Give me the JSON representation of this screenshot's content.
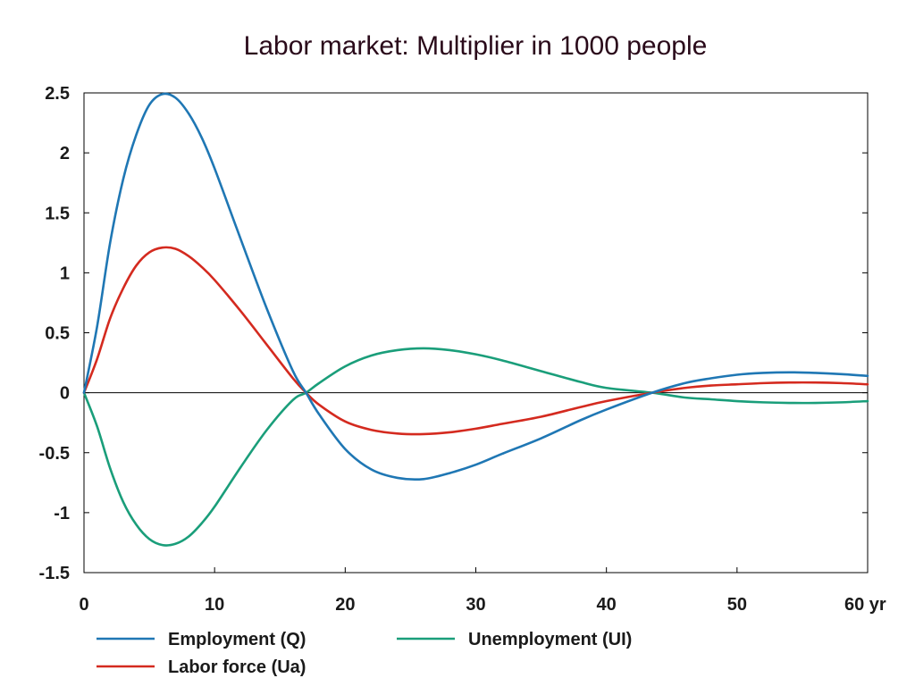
{
  "chart_data": {
    "type": "line",
    "title": "Labor market: Multiplier in 1000 people",
    "xlabel": "",
    "ylabel": "",
    "x_unit": "yr",
    "xlim": [
      0,
      60
    ],
    "ylim": [
      -1.5,
      2.5
    ],
    "x_ticks": [
      "0",
      "10",
      "20",
      "30",
      "40",
      "50",
      "60 yr"
    ],
    "x_tick_values": [
      0,
      10,
      20,
      30,
      40,
      50,
      60
    ],
    "y_ticks": [
      "2.5",
      "2",
      "1.5",
      "1",
      "0.5",
      "0",
      "-0.5",
      "-1",
      "-1.5"
    ],
    "y_tick_values": [
      2.5,
      2,
      1.5,
      1,
      0.5,
      0,
      -0.5,
      -1,
      -1.5
    ],
    "grid": false,
    "zero_line": true,
    "legend_position": "bottom",
    "series": [
      {
        "name": "Employment (Q)",
        "color": "#1f77b4",
        "x": [
          0,
          1,
          2,
          3,
          4,
          5,
          6,
          7,
          8,
          9,
          10,
          12,
          14,
          16,
          17,
          18,
          20,
          22,
          24,
          26,
          28,
          30,
          32,
          35,
          38,
          40,
          43.5,
          46,
          48,
          50,
          52,
          54,
          56,
          58,
          60
        ],
        "y": [
          0,
          0.55,
          1.25,
          1.78,
          2.15,
          2.4,
          2.49,
          2.46,
          2.33,
          2.13,
          1.87,
          1.28,
          0.7,
          0.18,
          0,
          -0.18,
          -0.47,
          -0.64,
          -0.71,
          -0.72,
          -0.67,
          -0.6,
          -0.51,
          -0.38,
          -0.23,
          -0.14,
          0,
          0.08,
          0.12,
          0.15,
          0.165,
          0.17,
          0.165,
          0.155,
          0.14
        ]
      },
      {
        "name": "Labor force (Ua)",
        "color": "#d42a1f",
        "x": [
          0,
          1,
          2,
          3,
          4,
          5,
          6,
          7,
          8,
          9,
          10,
          12,
          14,
          16,
          17,
          18,
          20,
          22,
          24,
          26,
          28,
          30,
          32,
          35,
          38,
          40,
          43.5,
          46,
          48,
          50,
          52,
          54,
          56,
          58,
          60
        ],
        "y": [
          0,
          0.28,
          0.62,
          0.87,
          1.06,
          1.17,
          1.21,
          1.2,
          1.14,
          1.05,
          0.94,
          0.68,
          0.4,
          0.12,
          0,
          -0.1,
          -0.24,
          -0.31,
          -0.34,
          -0.345,
          -0.33,
          -0.3,
          -0.26,
          -0.2,
          -0.12,
          -0.07,
          0,
          0.04,
          0.06,
          0.07,
          0.08,
          0.085,
          0.085,
          0.08,
          0.07
        ]
      },
      {
        "name": "Unemployment (UI)",
        "color": "#1a9e7a",
        "x": [
          0,
          1,
          2,
          3,
          4,
          5,
          6,
          7,
          8,
          9,
          10,
          12,
          14,
          16,
          17,
          18,
          20,
          22,
          24,
          26,
          28,
          30,
          32,
          35,
          38,
          40,
          43.5,
          46,
          48,
          50,
          52,
          54,
          56,
          58,
          60
        ],
        "y": [
          0,
          -0.28,
          -0.63,
          -0.91,
          -1.1,
          -1.22,
          -1.27,
          -1.26,
          -1.2,
          -1.09,
          -0.95,
          -0.62,
          -0.31,
          -0.06,
          0,
          0.08,
          0.22,
          0.31,
          0.355,
          0.37,
          0.355,
          0.32,
          0.27,
          0.18,
          0.09,
          0.04,
          0,
          -0.04,
          -0.055,
          -0.07,
          -0.08,
          -0.085,
          -0.085,
          -0.08,
          -0.07
        ]
      }
    ]
  }
}
